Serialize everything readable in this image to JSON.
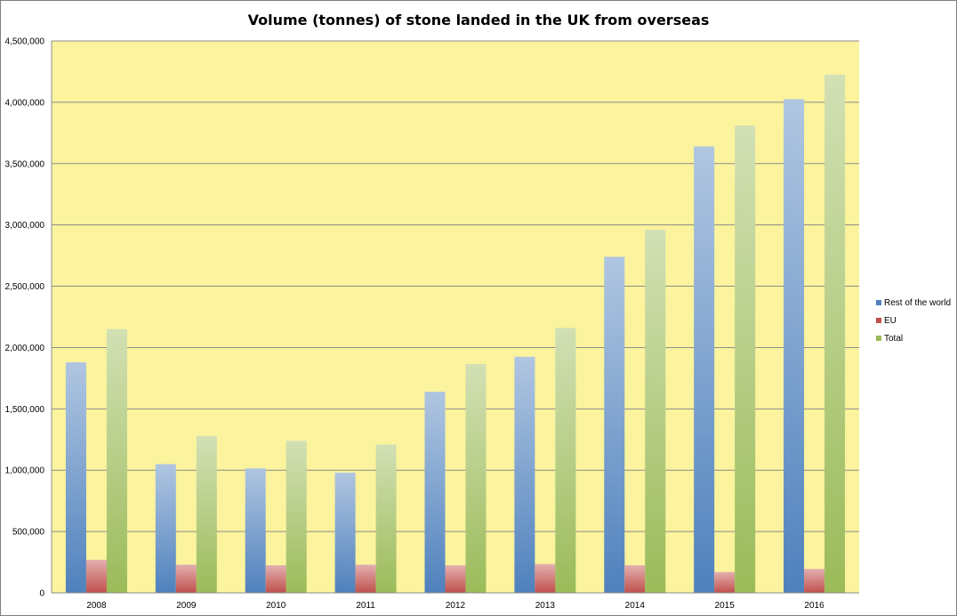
{
  "chart_data": {
    "type": "bar",
    "title": "Volume (tonnes) of stone landed in the UK from overseas",
    "xlabel": "",
    "ylabel": "",
    "categories": [
      "2008",
      "2009",
      "2010",
      "2011",
      "2012",
      "2013",
      "2014",
      "2015",
      "2016"
    ],
    "series": [
      {
        "name": "Rest of the world",
        "color": "#4f81bd",
        "values": [
          1880000,
          1050000,
          1015000,
          980000,
          1640000,
          1925000,
          2740000,
          3640000,
          4025000
        ]
      },
      {
        "name": "EU",
        "color": "#c0504d",
        "values": [
          270000,
          230000,
          225000,
          230000,
          225000,
          235000,
          225000,
          170000,
          195000
        ]
      },
      {
        "name": "Total",
        "color": "#9bbb59",
        "values": [
          2150000,
          1280000,
          1240000,
          1210000,
          1865000,
          2160000,
          2960000,
          3810000,
          4225000
        ]
      }
    ],
    "ylim": [
      0,
      4500000
    ],
    "yticks": [
      0,
      500000,
      1000000,
      1500000,
      2000000,
      2500000,
      3000000,
      3500000,
      4000000,
      4500000
    ],
    "ytick_labels": [
      "0",
      "500,000",
      "1,000,000",
      "1,500,000",
      "2,000,000",
      "2,500,000",
      "3,000,000",
      "3,500,000",
      "4,000,000",
      "4,500,000"
    ],
    "grid": true,
    "legend_position": "right",
    "plot_background": "#fbf39d"
  }
}
